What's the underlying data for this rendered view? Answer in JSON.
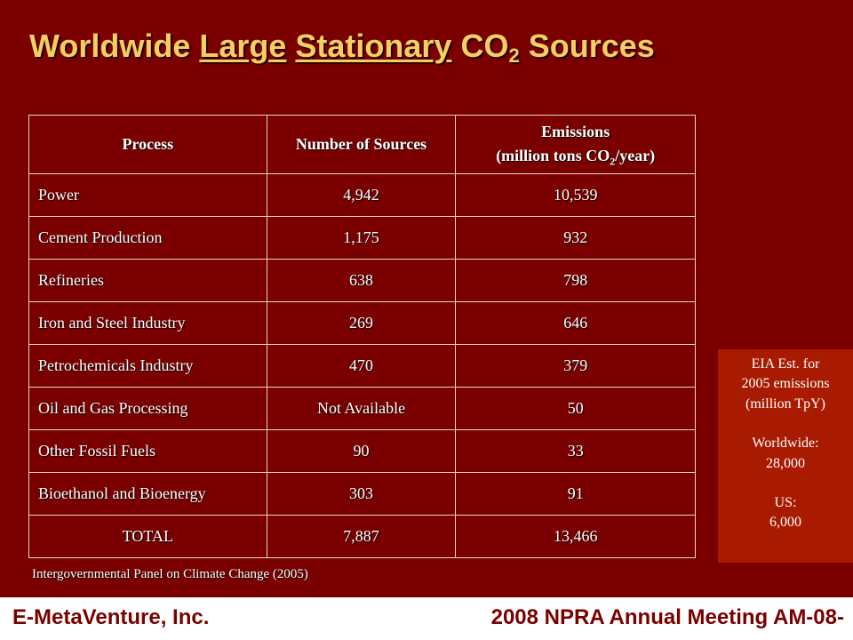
{
  "title": {
    "part1": "Worldwide ",
    "large": "Large",
    "space1": " ",
    "stationary": "Stationary",
    "part2": " CO",
    "sub": "2",
    "part3": " Sources"
  },
  "table": {
    "headers": {
      "process": "Process",
      "number": "Number of Sources",
      "emissions_line1": "Emissions",
      "emissions_line2_a": "(million tons CO",
      "emissions_line2_sub": "2",
      "emissions_line2_b": "/year)"
    },
    "rows": [
      {
        "process": "Power",
        "number": "4,942",
        "emissions": "10,539"
      },
      {
        "process": "Cement Production",
        "number": "1,175",
        "emissions": "932"
      },
      {
        "process": "Refineries",
        "number": "638",
        "emissions": "798"
      },
      {
        "process": "Iron and Steel Industry",
        "number": "269",
        "emissions": "646"
      },
      {
        "process": "Petrochemicals Industry",
        "number": "470",
        "emissions": "379"
      },
      {
        "process": "Oil and Gas Processing",
        "number": "Not Available",
        "emissions": "50"
      },
      {
        "process": "Other Fossil Fuels",
        "number": "90",
        "emissions": "33"
      },
      {
        "process": "Bioethanol and Bioenergy",
        "number": "303",
        "emissions": "91"
      },
      {
        "process": "TOTAL",
        "number": "7,887",
        "emissions": "13,466"
      }
    ]
  },
  "source": "Intergovernmental Panel on Climate Change (2005)",
  "eia_box": {
    "line1": "EIA Est. for",
    "line2": "2005 emissions",
    "line3": "(million TpY)",
    "worldwide_label": "Worldwide:",
    "worldwide_value": "28,000",
    "us_label": "US:",
    "us_value": "6,000"
  },
  "footer": {
    "left": "E-MetaVenture, Inc.",
    "right": "2008 NPRA Annual Meeting AM-08-"
  },
  "colors": {
    "background": "#7a0000",
    "title": "#f3cf63",
    "eia_box": "#a81b00"
  }
}
